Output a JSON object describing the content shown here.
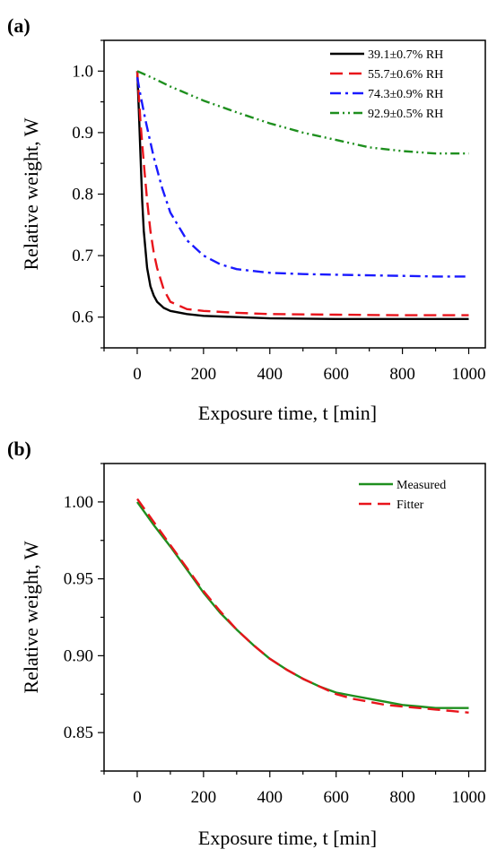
{
  "chart_data": [
    {
      "panel_label": "(a)",
      "type": "line",
      "xlabel": "Exposure time, t [min]",
      "ylabel": "Relative weight, W",
      "xlim": [
        -100,
        1050
      ],
      "ylim": [
        0.55,
        1.05
      ],
      "xticks": [
        0,
        200,
        400,
        600,
        800,
        1000
      ],
      "xtick_labels": [
        "0",
        "200",
        "400",
        "600",
        "800",
        "1000"
      ],
      "yticks": [
        0.6,
        0.7,
        0.8,
        0.9,
        1.0
      ],
      "ytick_labels": [
        "0.6",
        "0.7",
        "0.8",
        "0.9",
        "1.0"
      ],
      "legend_position": "top-right",
      "grid": false,
      "series": [
        {
          "name": "39.1±0.7% RH",
          "color": "#000000",
          "dash": "solid",
          "x": [
            0,
            5,
            10,
            15,
            20,
            30,
            40,
            50,
            60,
            80,
            100,
            150,
            200,
            300,
            400,
            600,
            800,
            1000
          ],
          "y": [
            1.0,
            0.935,
            0.86,
            0.79,
            0.74,
            0.68,
            0.65,
            0.635,
            0.625,
            0.615,
            0.61,
            0.605,
            0.602,
            0.6,
            0.598,
            0.597,
            0.597,
            0.597
          ]
        },
        {
          "name": "55.7±0.6% RH",
          "color": "#e8141b",
          "dash": "dashed",
          "x": [
            0,
            5,
            10,
            20,
            30,
            40,
            50,
            60,
            80,
            100,
            150,
            200,
            300,
            400,
            600,
            800,
            1000
          ],
          "y": [
            1.0,
            0.96,
            0.915,
            0.85,
            0.79,
            0.74,
            0.705,
            0.68,
            0.645,
            0.625,
            0.613,
            0.61,
            0.607,
            0.605,
            0.604,
            0.603,
            0.603
          ]
        },
        {
          "name": "74.3±0.9% RH",
          "color": "#1a1aff",
          "dash": "dashdot",
          "x": [
            0,
            10,
            25,
            50,
            75,
            100,
            150,
            200,
            250,
            300,
            400,
            500,
            600,
            700,
            800,
            900,
            1000
          ],
          "y": [
            0.99,
            0.96,
            0.92,
            0.86,
            0.81,
            0.77,
            0.725,
            0.7,
            0.686,
            0.678,
            0.672,
            0.67,
            0.669,
            0.668,
            0.667,
            0.666,
            0.666
          ]
        },
        {
          "name": "92.9±0.5% RH",
          "color": "#1e8f1e",
          "dash": "dashdotdot",
          "x": [
            0,
            50,
            100,
            200,
            300,
            400,
            500,
            600,
            700,
            800,
            900,
            1000
          ],
          "y": [
            1.0,
            0.988,
            0.975,
            0.952,
            0.933,
            0.915,
            0.9,
            0.888,
            0.876,
            0.87,
            0.866,
            0.866
          ]
        }
      ]
    },
    {
      "panel_label": "(b)",
      "type": "line",
      "xlabel": "Exposure time, t [min]",
      "ylabel": "Relative weight, W",
      "xlim": [
        -100,
        1050
      ],
      "ylim": [
        0.825,
        1.025
      ],
      "xticks": [
        0,
        200,
        400,
        600,
        800,
        1000
      ],
      "xtick_labels": [
        "0",
        "200",
        "400",
        "600",
        "800",
        "1000"
      ],
      "yticks": [
        0.85,
        0.9,
        0.95,
        1.0
      ],
      "ytick_labels": [
        "0.85",
        "0.90",
        "0.95",
        "1.00"
      ],
      "legend_position": "top-right",
      "grid": false,
      "series": [
        {
          "name": "Measured",
          "color": "#1e8f1e",
          "dash": "solid",
          "x": [
            0,
            50,
            100,
            150,
            200,
            250,
            300,
            350,
            400,
            450,
            500,
            550,
            600,
            650,
            700,
            750,
            800,
            850,
            900,
            950,
            1000
          ],
          "y": [
            1.0,
            0.985,
            0.971,
            0.956,
            0.941,
            0.928,
            0.917,
            0.907,
            0.898,
            0.891,
            0.885,
            0.88,
            0.876,
            0.874,
            0.872,
            0.87,
            0.868,
            0.867,
            0.866,
            0.866,
            0.866
          ]
        },
        {
          "name": "Fitter",
          "color": "#e8141b",
          "dash": "dashed",
          "x": [
            0,
            50,
            100,
            150,
            200,
            250,
            300,
            350,
            400,
            450,
            500,
            550,
            600,
            650,
            700,
            750,
            800,
            850,
            900,
            950,
            1000
          ],
          "y": [
            1.002,
            0.987,
            0.972,
            0.957,
            0.942,
            0.929,
            0.917,
            0.907,
            0.898,
            0.891,
            0.885,
            0.88,
            0.875,
            0.872,
            0.87,
            0.868,
            0.867,
            0.866,
            0.865,
            0.864,
            0.863
          ]
        }
      ]
    }
  ]
}
